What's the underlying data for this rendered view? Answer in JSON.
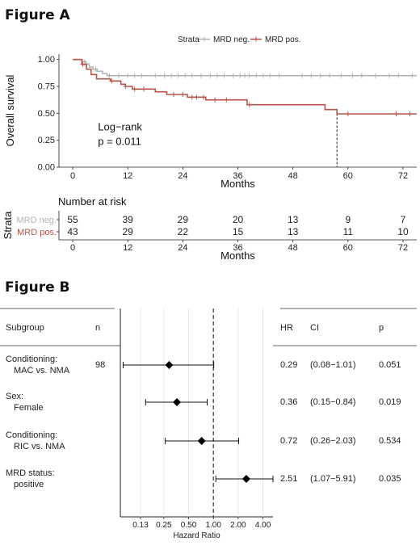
{
  "colors": {
    "mrd_neg": "#b4b4b4",
    "mrd_pos": "#b5554b"
  },
  "chart_data": [
    {
      "panel_title": "Figure A",
      "type": "line",
      "subtype": "kaplan-meier",
      "legend": {
        "title": "Strata",
        "placement": "top",
        "entries": [
          "MRD neg.",
          "MRD pos."
        ]
      },
      "xlabel": "Months",
      "ylabel": "Overall survival",
      "xlim": [
        -3,
        75
      ],
      "ylim": [
        0,
        1.05
      ],
      "x_ticks": [
        0,
        12,
        24,
        36,
        48,
        60,
        72
      ],
      "y_ticks": [
        "0.00",
        "0.25",
        "0.50",
        "0.75",
        "1.00"
      ],
      "annotation": {
        "line1": "Log−rank",
        "line2": "p = 0.011"
      },
      "median_line": {
        "x": 57.6,
        "y": 0.5
      },
      "series": [
        {
          "name": "MRD neg.",
          "color": "#b4b4b4",
          "steps": [
            [
              0,
              1.0
            ],
            [
              2,
              0.98
            ],
            [
              2.8,
              0.96
            ],
            [
              3.6,
              0.93
            ],
            [
              4.4,
              0.91
            ],
            [
              5.3,
              0.89
            ],
            [
              6.5,
              0.87
            ],
            [
              7.5,
              0.85
            ],
            [
              75,
              0.85
            ]
          ],
          "censor": [
            2.6,
            5,
            8,
            10,
            12,
            13.5,
            15,
            18,
            20,
            21.5,
            23,
            24.5,
            26,
            28,
            30,
            31.5,
            33,
            35,
            36.5,
            37.5,
            38.5,
            40,
            41.5,
            43,
            45,
            50,
            52,
            54,
            56,
            58.5,
            61,
            63,
            66,
            69,
            71,
            74
          ]
        },
        {
          "name": "MRD pos.",
          "color": "#b5554b",
          "steps": [
            [
              0,
              1.0
            ],
            [
              2,
              0.955
            ],
            [
              3,
              0.91
            ],
            [
              4,
              0.86
            ],
            [
              5.2,
              0.82
            ],
            [
              8.2,
              0.8
            ],
            [
              10.5,
              0.77
            ],
            [
              11.5,
              0.75
            ],
            [
              13,
              0.725
            ],
            [
              18,
              0.7
            ],
            [
              20.5,
              0.675
            ],
            [
              25,
              0.65
            ],
            [
              29,
              0.625
            ],
            [
              38,
              0.58
            ],
            [
              55,
              0.535
            ],
            [
              57.6,
              0.495
            ],
            [
              75,
              0.495
            ]
          ],
          "censor": [
            2.2,
            8.5,
            11.5,
            13.5,
            15.5,
            22,
            24,
            26,
            27,
            28.5,
            31,
            33.5,
            38.5,
            60,
            70.5,
            73.5
          ]
        }
      ],
      "risk_table": {
        "title": "Number at risk",
        "y_axis_title": "Strata",
        "x_label": "Months",
        "times": [
          0,
          12,
          24,
          36,
          48,
          60,
          72
        ],
        "rows": [
          {
            "label": "MRD neg.",
            "color": "#b4b4b4",
            "counts": [
              55,
              39,
              29,
              20,
              13,
              9,
              7
            ]
          },
          {
            "label": "MRD pos.",
            "color": "#b5554b",
            "counts": [
              43,
              29,
              22,
              15,
              13,
              11,
              10
            ]
          }
        ]
      }
    },
    {
      "panel_title": "Figure B",
      "type": "forest",
      "xlabel": "Hazard Ratio",
      "x_scale": "log",
      "xlim": [
        0.074,
        5.3
      ],
      "x_ticks": [
        0.13,
        0.25,
        0.5,
        1,
        2,
        4
      ],
      "x_tick_labels": [
        "0.13",
        "0.25",
        "0.50",
        "1.00",
        "2.00",
        "4.00"
      ],
      "reference_line": 1,
      "headers": {
        "subgroup": "Subgroup",
        "n": "n",
        "hr": "HR",
        "ci": "CI",
        "p": "p"
      },
      "rows": [
        {
          "line1": "Conditioning:",
          "line2": "MAC vs. NMA",
          "n": "98",
          "hr": 0.29,
          "lo": 0.08,
          "hi": 1.01,
          "hr_text": "0.29",
          "ci_text": "(0.08−1.01)",
          "p_text": "0.051"
        },
        {
          "line1": "Sex:",
          "line2": "Female",
          "n": "",
          "hr": 0.36,
          "lo": 0.15,
          "hi": 0.84,
          "hr_text": "0.36",
          "ci_text": "(0.15−0.84)",
          "p_text": "0.019"
        },
        {
          "line1": "Conditioning:",
          "line2": "RIC vs. NMA",
          "n": "",
          "hr": 0.72,
          "lo": 0.26,
          "hi": 2.03,
          "hr_text": "0.72",
          "ci_text": "(0.26−2.03)",
          "p_text": "0.534"
        },
        {
          "line1": "MRD status:",
          "line2": "positive",
          "n": "",
          "hr": 2.51,
          "lo": 1.07,
          "hi": 5.91,
          "hr_text": "2.51",
          "ci_text": "(1.07−5.91)",
          "p_text": "0.035"
        }
      ]
    }
  ]
}
